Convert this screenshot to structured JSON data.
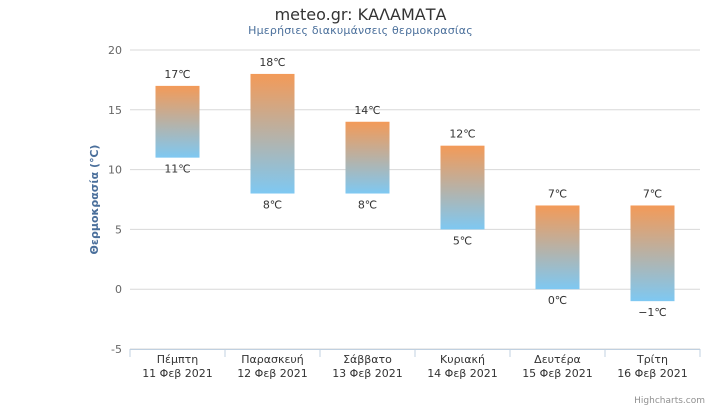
{
  "chart_data": {
    "type": "bar",
    "subtype": "columnrange",
    "title": "meteo.gr: ΚΑΛΑΜΑΤΑ",
    "subtitle": "Ημερήσιες διακυμάνσεις θερμοκρασίας",
    "ylabel": "Θερμοκρασία (℃)",
    "xlabel": "",
    "ylim": [
      -5,
      20
    ],
    "yticks": [
      -5,
      0,
      5,
      10,
      15,
      20
    ],
    "grid": true,
    "legend": "none",
    "categories": [
      [
        "Πέμπτη",
        "11 Φεβ 2021"
      ],
      [
        "Παρασκευή",
        "12 Φεβ 2021"
      ],
      [
        "Σάββατο",
        "13 Φεβ 2021"
      ],
      [
        "Κυριακή",
        "14 Φεβ 2021"
      ],
      [
        "Δευτέρα",
        "15 Φεβ 2021"
      ],
      [
        "Τρίτη",
        "16 Φεβ 2021"
      ]
    ],
    "series": [
      {
        "low": [
          11,
          8,
          8,
          5,
          0,
          -1
        ],
        "high": [
          17,
          18,
          14,
          12,
          7,
          7
        ],
        "low_labels": [
          "11℃",
          "8℃",
          "8℃",
          "5℃",
          "0℃",
          "−1℃"
        ],
        "high_labels": [
          "17℃",
          "18℃",
          "14℃",
          "12℃",
          "7℃",
          "7℃"
        ]
      }
    ],
    "colors": {
      "high": "#f39a58",
      "low": "#7ec8f2",
      "grid": "#d8d8d8",
      "axis": "#c0d0e0",
      "label": "#333333",
      "ylabel": "#4a6f9b"
    }
  },
  "credits": "Highcharts.com"
}
